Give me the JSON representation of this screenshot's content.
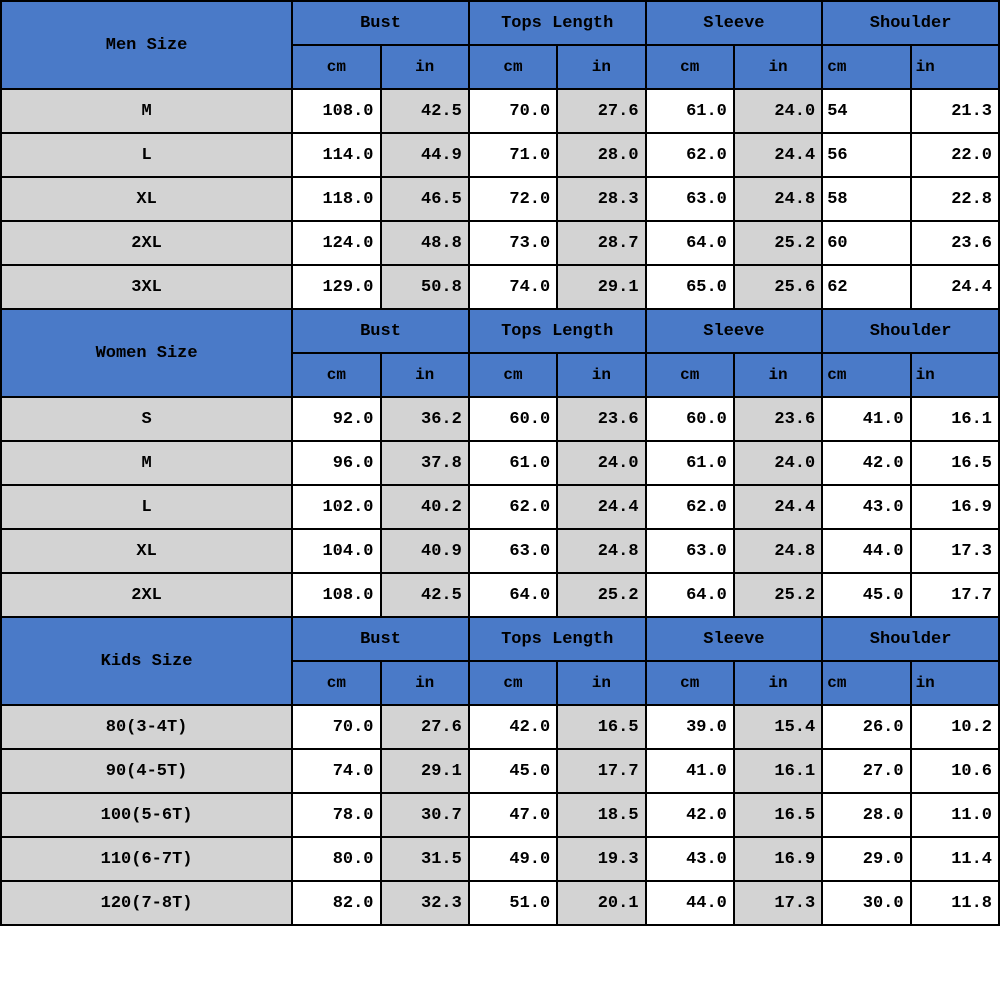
{
  "colors": {
    "header_bg": "#4a7ac8",
    "size_bg": "#d3d3d3",
    "cell_white": "#ffffff",
    "cell_gray": "#d3d3d3",
    "border": "#000000",
    "text": "#000000"
  },
  "font": {
    "family": "Courier New, monospace",
    "weight": "bold",
    "size_header": 17,
    "size_cell": 17
  },
  "sections": [
    {
      "title": "Men Size",
      "measurements": [
        "Bust",
        "Tops Length",
        "Sleeve",
        "Shoulder"
      ],
      "units": [
        "cm",
        "in",
        "cm",
        "in",
        "cm",
        "in",
        "cm",
        "in"
      ],
      "rows": [
        {
          "size": "M",
          "v": [
            "108.0",
            "42.5",
            "70.0",
            "27.6",
            "61.0",
            "24.0",
            "54",
            "21.3"
          ]
        },
        {
          "size": "L",
          "v": [
            "114.0",
            "44.9",
            "71.0",
            "28.0",
            "62.0",
            "24.4",
            "56",
            "22.0"
          ]
        },
        {
          "size": "XL",
          "v": [
            "118.0",
            "46.5",
            "72.0",
            "28.3",
            "63.0",
            "24.8",
            "58",
            "22.8"
          ]
        },
        {
          "size": "2XL",
          "v": [
            "124.0",
            "48.8",
            "73.0",
            "28.7",
            "64.0",
            "25.2",
            "60",
            "23.6"
          ]
        },
        {
          "size": "3XL",
          "v": [
            "129.0",
            "50.8",
            "74.0",
            "29.1",
            "65.0",
            "25.6",
            "62",
            "24.4"
          ]
        }
      ]
    },
    {
      "title": "Women Size",
      "measurements": [
        "Bust",
        "Tops Length",
        "Sleeve",
        "Shoulder"
      ],
      "units": [
        "cm",
        "in",
        "cm",
        "in",
        "cm",
        "in",
        "cm",
        "in"
      ],
      "rows": [
        {
          "size": "S",
          "v": [
            "92.0",
            "36.2",
            "60.0",
            "23.6",
            "60.0",
            "23.6",
            "41.0",
            "16.1"
          ]
        },
        {
          "size": "M",
          "v": [
            "96.0",
            "37.8",
            "61.0",
            "24.0",
            "61.0",
            "24.0",
            "42.0",
            "16.5"
          ]
        },
        {
          "size": "L",
          "v": [
            "102.0",
            "40.2",
            "62.0",
            "24.4",
            "62.0",
            "24.4",
            "43.0",
            "16.9"
          ]
        },
        {
          "size": "XL",
          "v": [
            "104.0",
            "40.9",
            "63.0",
            "24.8",
            "63.0",
            "24.8",
            "44.0",
            "17.3"
          ]
        },
        {
          "size": "2XL",
          "v": [
            "108.0",
            "42.5",
            "64.0",
            "25.2",
            "64.0",
            "25.2",
            "45.0",
            "17.7"
          ]
        }
      ]
    },
    {
      "title": "Kids Size",
      "measurements": [
        "Bust",
        "Tops Length",
        "Sleeve",
        "Shoulder"
      ],
      "units": [
        "cm",
        "in",
        "cm",
        "in",
        "cm",
        "in",
        "cm",
        "in"
      ],
      "rows": [
        {
          "size": "80(3-4T)",
          "v": [
            "70.0",
            "27.6",
            "42.0",
            "16.5",
            "39.0",
            "15.4",
            "26.0",
            "10.2"
          ]
        },
        {
          "size": "90(4-5T)",
          "v": [
            "74.0",
            "29.1",
            "45.0",
            "17.7",
            "41.0",
            "16.1",
            "27.0",
            "10.6"
          ]
        },
        {
          "size": "100(5-6T)",
          "v": [
            "78.0",
            "30.7",
            "47.0",
            "18.5",
            "42.0",
            "16.5",
            "28.0",
            "11.0"
          ]
        },
        {
          "size": "110(6-7T)",
          "v": [
            "80.0",
            "31.5",
            "49.0",
            "19.3",
            "43.0",
            "16.9",
            "29.0",
            "11.4"
          ]
        },
        {
          "size": "120(7-8T)",
          "v": [
            "82.0",
            "32.3",
            "51.0",
            "20.1",
            "44.0",
            "17.3",
            "30.0",
            "11.8"
          ]
        }
      ]
    }
  ],
  "shoulder_cm_left_align_sections": [
    0
  ],
  "gray_value_columns": [
    1,
    3,
    5
  ]
}
